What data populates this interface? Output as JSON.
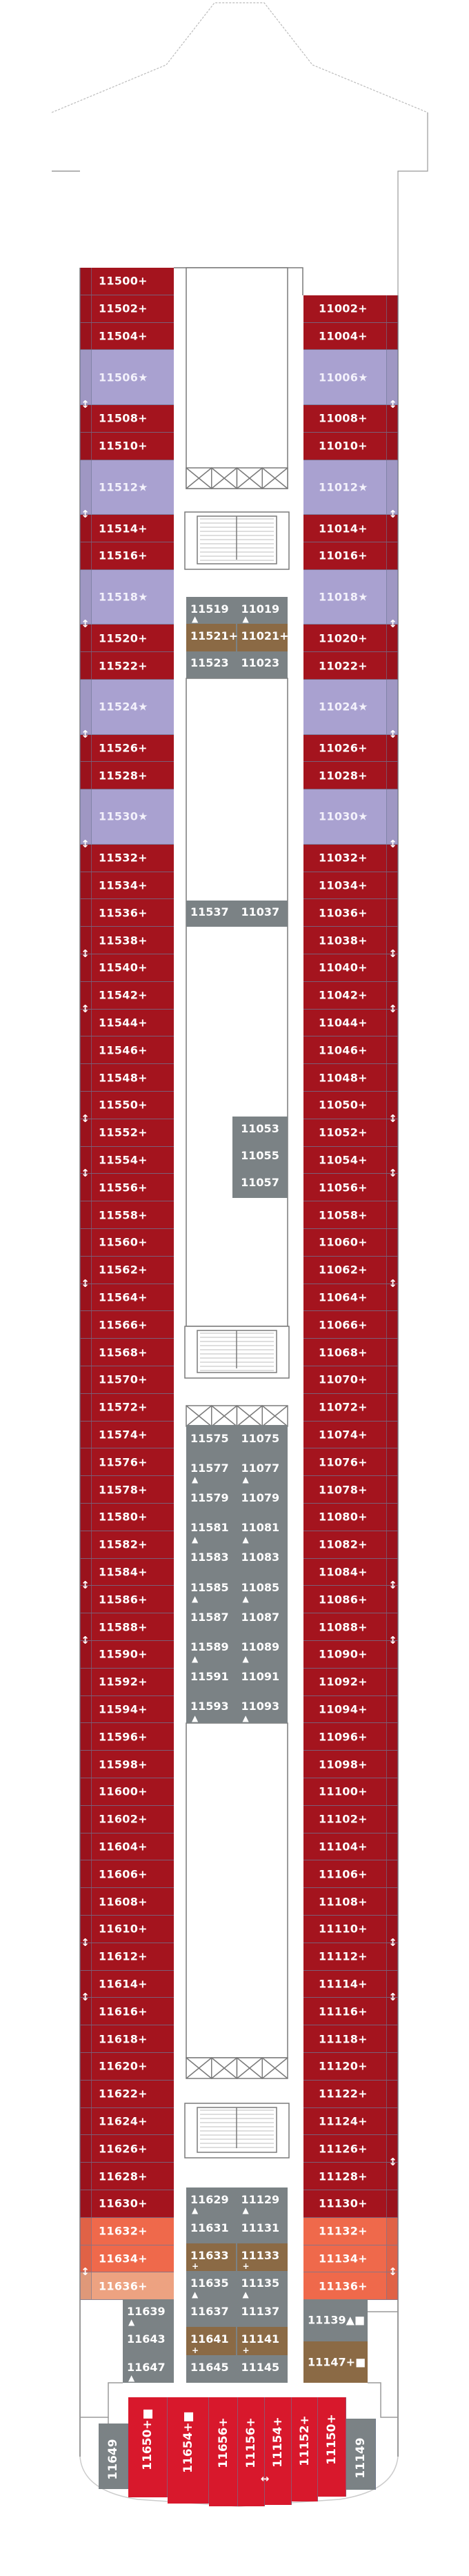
{
  "colors": {
    "red": "#a4141e",
    "red_strip": "#9a121b",
    "purple": "#a9a1d0",
    "grey": "#7b8285",
    "brown": "#8b6a45",
    "orange": "#ef694b",
    "peach": "#eda281",
    "aft_red": "#d8182c",
    "outline": "#7a7a7a"
  },
  "connecting_icon": "connecting-door-arrow-icon",
  "port_cabins": [
    {
      "label": "11500+",
      "cat": "red"
    },
    {
      "label": "11502+",
      "cat": "red"
    },
    {
      "label": "11504+",
      "cat": "red"
    },
    {
      "label": "11506★",
      "cat": "purple",
      "conn": true
    },
    {
      "label": "11508+",
      "cat": "red"
    },
    {
      "label": "11510+",
      "cat": "red"
    },
    {
      "label": "11512★",
      "cat": "purple",
      "conn": true
    },
    {
      "label": "11514+",
      "cat": "red"
    },
    {
      "label": "11516+",
      "cat": "red"
    },
    {
      "label": "11518★",
      "cat": "purple",
      "conn": true
    },
    {
      "label": "11520+",
      "cat": "red"
    },
    {
      "label": "11522+",
      "cat": "red"
    },
    {
      "label": "11524★",
      "cat": "purple",
      "conn": true
    },
    {
      "label": "11526+",
      "cat": "red"
    },
    {
      "label": "11528+",
      "cat": "red"
    },
    {
      "label": "11530★",
      "cat": "purple",
      "conn": true
    },
    {
      "label": "11532+",
      "cat": "red"
    },
    {
      "label": "11534+",
      "cat": "red"
    },
    {
      "label": "11536+",
      "cat": "red"
    },
    {
      "label": "11538+",
      "cat": "red",
      "conn": true
    },
    {
      "label": "11540+",
      "cat": "red"
    },
    {
      "label": "11542+",
      "cat": "red",
      "conn": true
    },
    {
      "label": "11544+",
      "cat": "red"
    },
    {
      "label": "11546+",
      "cat": "red"
    },
    {
      "label": "11548+",
      "cat": "red"
    },
    {
      "label": "11550+",
      "cat": "red",
      "conn": true
    },
    {
      "label": "11552+",
      "cat": "red"
    },
    {
      "label": "11554+",
      "cat": "red",
      "conn": true
    },
    {
      "label": "11556+",
      "cat": "red"
    },
    {
      "label": "11558+",
      "cat": "red"
    },
    {
      "label": "11560+",
      "cat": "red"
    },
    {
      "label": "11562+",
      "cat": "red",
      "conn": true
    },
    {
      "label": "11564+",
      "cat": "red"
    },
    {
      "label": "11566+",
      "cat": "red"
    },
    {
      "label": "11568+",
      "cat": "red"
    },
    {
      "label": "11570+",
      "cat": "red"
    },
    {
      "label": "11572+",
      "cat": "red"
    },
    {
      "label": "11574+",
      "cat": "red"
    },
    {
      "label": "11576+",
      "cat": "red"
    },
    {
      "label": "11578+",
      "cat": "red"
    },
    {
      "label": "11580+",
      "cat": "red"
    },
    {
      "label": "11582+",
      "cat": "red"
    },
    {
      "label": "11584+",
      "cat": "red",
      "conn": true
    },
    {
      "label": "11586+",
      "cat": "red"
    },
    {
      "label": "11588+",
      "cat": "red",
      "conn": true
    },
    {
      "label": "11590+",
      "cat": "red"
    },
    {
      "label": "11592+",
      "cat": "red"
    },
    {
      "label": "11594+",
      "cat": "red"
    },
    {
      "label": "11596+",
      "cat": "red"
    },
    {
      "label": "11598+",
      "cat": "red"
    },
    {
      "label": "11600+",
      "cat": "red"
    },
    {
      "label": "11602+",
      "cat": "red"
    },
    {
      "label": "11604+",
      "cat": "red"
    },
    {
      "label": "11606+",
      "cat": "red"
    },
    {
      "label": "11608+",
      "cat": "red"
    },
    {
      "label": "11610+",
      "cat": "red",
      "conn": true
    },
    {
      "label": "11612+",
      "cat": "red"
    },
    {
      "label": "11614+",
      "cat": "red",
      "conn": true
    },
    {
      "label": "11616+",
      "cat": "red"
    },
    {
      "label": "11618+",
      "cat": "red"
    },
    {
      "label": "11620+",
      "cat": "red"
    },
    {
      "label": "11622+",
      "cat": "red"
    },
    {
      "label": "11624+",
      "cat": "red"
    },
    {
      "label": "11626+",
      "cat": "red"
    },
    {
      "label": "11628+",
      "cat": "red"
    },
    {
      "label": "11630+",
      "cat": "red"
    },
    {
      "label": "11632+",
      "cat": "orange"
    },
    {
      "label": "11634+",
      "cat": "orange",
      "conn": true
    },
    {
      "label": "11636+",
      "cat": "peach"
    }
  ],
  "starboard_cabins": [
    {
      "label": "11002+",
      "cat": "red"
    },
    {
      "label": "11004+",
      "cat": "red"
    },
    {
      "label": "11006★",
      "cat": "purple",
      "conn": true
    },
    {
      "label": "11008+",
      "cat": "red"
    },
    {
      "label": "11010+",
      "cat": "red"
    },
    {
      "label": "11012★",
      "cat": "purple",
      "conn": true
    },
    {
      "label": "11014+",
      "cat": "red"
    },
    {
      "label": "11016+",
      "cat": "red"
    },
    {
      "label": "11018★",
      "cat": "purple",
      "conn": true
    },
    {
      "label": "11020+",
      "cat": "red"
    },
    {
      "label": "11022+",
      "cat": "red"
    },
    {
      "label": "11024★",
      "cat": "purple",
      "conn": true
    },
    {
      "label": "11026+",
      "cat": "red"
    },
    {
      "label": "11028+",
      "cat": "red"
    },
    {
      "label": "11030★",
      "cat": "purple",
      "conn": true
    },
    {
      "label": "11032+",
      "cat": "red"
    },
    {
      "label": "11034+",
      "cat": "red"
    },
    {
      "label": "11036+",
      "cat": "red"
    },
    {
      "label": "11038+",
      "cat": "red",
      "conn": true
    },
    {
      "label": "11040+",
      "cat": "red"
    },
    {
      "label": "11042+",
      "cat": "red",
      "conn": true
    },
    {
      "label": "11044+",
      "cat": "red"
    },
    {
      "label": "11046+",
      "cat": "red"
    },
    {
      "label": "11048+",
      "cat": "red"
    },
    {
      "label": "11050+",
      "cat": "red",
      "conn": true
    },
    {
      "label": "11052+",
      "cat": "red"
    },
    {
      "label": "11054+",
      "cat": "red",
      "conn": true
    },
    {
      "label": "11056+",
      "cat": "red"
    },
    {
      "label": "11058+",
      "cat": "red"
    },
    {
      "label": "11060+",
      "cat": "red"
    },
    {
      "label": "11062+",
      "cat": "red",
      "conn": true
    },
    {
      "label": "11064+",
      "cat": "red"
    },
    {
      "label": "11066+",
      "cat": "red"
    },
    {
      "label": "11068+",
      "cat": "red"
    },
    {
      "label": "11070+",
      "cat": "red"
    },
    {
      "label": "11072+",
      "cat": "red"
    },
    {
      "label": "11074+",
      "cat": "red"
    },
    {
      "label": "11076+",
      "cat": "red"
    },
    {
      "label": "11078+",
      "cat": "red"
    },
    {
      "label": "11080+",
      "cat": "red"
    },
    {
      "label": "11082+",
      "cat": "red"
    },
    {
      "label": "11084+",
      "cat": "red",
      "conn": true
    },
    {
      "label": "11086+",
      "cat": "red"
    },
    {
      "label": "11088+",
      "cat": "red",
      "conn": true
    },
    {
      "label": "11090+",
      "cat": "red"
    },
    {
      "label": "11092+",
      "cat": "red"
    },
    {
      "label": "11094+",
      "cat": "red"
    },
    {
      "label": "11096+",
      "cat": "red"
    },
    {
      "label": "11098+",
      "cat": "red"
    },
    {
      "label": "11100+",
      "cat": "red"
    },
    {
      "label": "11102+",
      "cat": "red"
    },
    {
      "label": "11104+",
      "cat": "red"
    },
    {
      "label": "11106+",
      "cat": "red"
    },
    {
      "label": "11108+",
      "cat": "red"
    },
    {
      "label": "11110+",
      "cat": "red",
      "conn": true
    },
    {
      "label": "11112+",
      "cat": "red"
    },
    {
      "label": "11114+",
      "cat": "red",
      "conn": true
    },
    {
      "label": "11116+",
      "cat": "red"
    },
    {
      "label": "11118+",
      "cat": "red"
    },
    {
      "label": "11120+",
      "cat": "red"
    },
    {
      "label": "11122+",
      "cat": "red"
    },
    {
      "label": "11124+",
      "cat": "red"
    },
    {
      "label": "11126+",
      "cat": "red",
      "conn": true
    },
    {
      "label": "11128+",
      "cat": "red"
    },
    {
      "label": "11130+",
      "cat": "red"
    },
    {
      "label": "11132+",
      "cat": "orange"
    },
    {
      "label": "11134+",
      "cat": "orange",
      "conn": true
    },
    {
      "label": "11136+",
      "cat": "orange"
    }
  ],
  "center_blocks": [
    {
      "id": "forward-inside",
      "rows": [
        {
          "left": "11519",
          "right": "11019",
          "mark": "▲",
          "cat": "grey"
        },
        {
          "left": "11521+",
          "right": "11021+",
          "cat": "brown"
        },
        {
          "left": "11523",
          "right": "11023",
          "cat": "grey"
        }
      ]
    },
    {
      "id": "inside-11537",
      "rows": [
        {
          "left": "11537",
          "right": "11037",
          "cat": "grey"
        }
      ]
    },
    {
      "id": "inside-11053",
      "rows": [
        {
          "right": "11053",
          "cat": "grey"
        },
        {
          "right": "11055",
          "cat": "grey"
        },
        {
          "right": "11057",
          "cat": "grey"
        }
      ]
    },
    {
      "id": "mid-inside",
      "rows": [
        {
          "left": "11575",
          "right": "11075",
          "cat": "grey"
        },
        {
          "left": "11577",
          "right": "11077",
          "mark": "▲",
          "cat": "grey"
        },
        {
          "left": "11579",
          "right": "11079",
          "cat": "grey"
        },
        {
          "left": "11581",
          "right": "11081",
          "mark": "▲",
          "cat": "grey"
        },
        {
          "left": "11583",
          "right": "11083",
          "cat": "grey"
        },
        {
          "left": "11585",
          "right": "11085",
          "mark": "▲",
          "cat": "grey"
        },
        {
          "left": "11587",
          "right": "11087",
          "cat": "grey"
        },
        {
          "left": "11589",
          "right": "11089",
          "mark": "▲",
          "cat": "grey"
        },
        {
          "left": "11591",
          "right": "11091",
          "cat": "grey"
        },
        {
          "left": "11593",
          "right": "11093",
          "mark": "▲",
          "cat": "grey"
        }
      ]
    },
    {
      "id": "aft-inside",
      "rows": [
        {
          "left": "11629",
          "right": "11129",
          "mark": "▲",
          "cat": "grey"
        },
        {
          "left": "11631",
          "right": "11131",
          "cat": "grey"
        },
        {
          "left": "11633",
          "right": "11133",
          "mark": "+",
          "cat": "brown"
        },
        {
          "left": "11635",
          "right": "11135",
          "mark": "▲",
          "cat": "grey"
        },
        {
          "left": "11637",
          "right": "11137",
          "cat": "grey"
        },
        {
          "left": "11641",
          "right": "11141",
          "mark": "+",
          "cat": "brown"
        },
        {
          "left": "11645",
          "right": "11145",
          "cat": "grey"
        }
      ]
    },
    {
      "id": "aft-port-inside",
      "rows": [
        {
          "left": "11639",
          "mark": "▲",
          "cat": "grey"
        },
        {
          "left": "11643",
          "cat": "grey"
        },
        {
          "left": "11647",
          "mark": "▲",
          "cat": "grey"
        }
      ]
    },
    {
      "id": "aft-starboard-inside",
      "rows": [
        {
          "left": "11139▲■",
          "cat": "grey"
        },
        {
          "left": "11147+■",
          "cat": "brown"
        }
      ]
    }
  ],
  "aft_cabins": [
    {
      "label": "11649",
      "cat": "grey"
    },
    {
      "label": "11650+■",
      "cat": "aft_red"
    },
    {
      "label": "11654+■",
      "cat": "aft_red"
    },
    {
      "label": "11656+",
      "cat": "aft_red"
    },
    {
      "label": "11156+",
      "cat": "aft_red",
      "conn": true
    },
    {
      "label": "11154+",
      "cat": "aft_red"
    },
    {
      "label": "11152+",
      "cat": "aft_red"
    },
    {
      "label": "11150+",
      "cat": "aft_red"
    },
    {
      "label": "11149",
      "cat": "grey"
    }
  ]
}
